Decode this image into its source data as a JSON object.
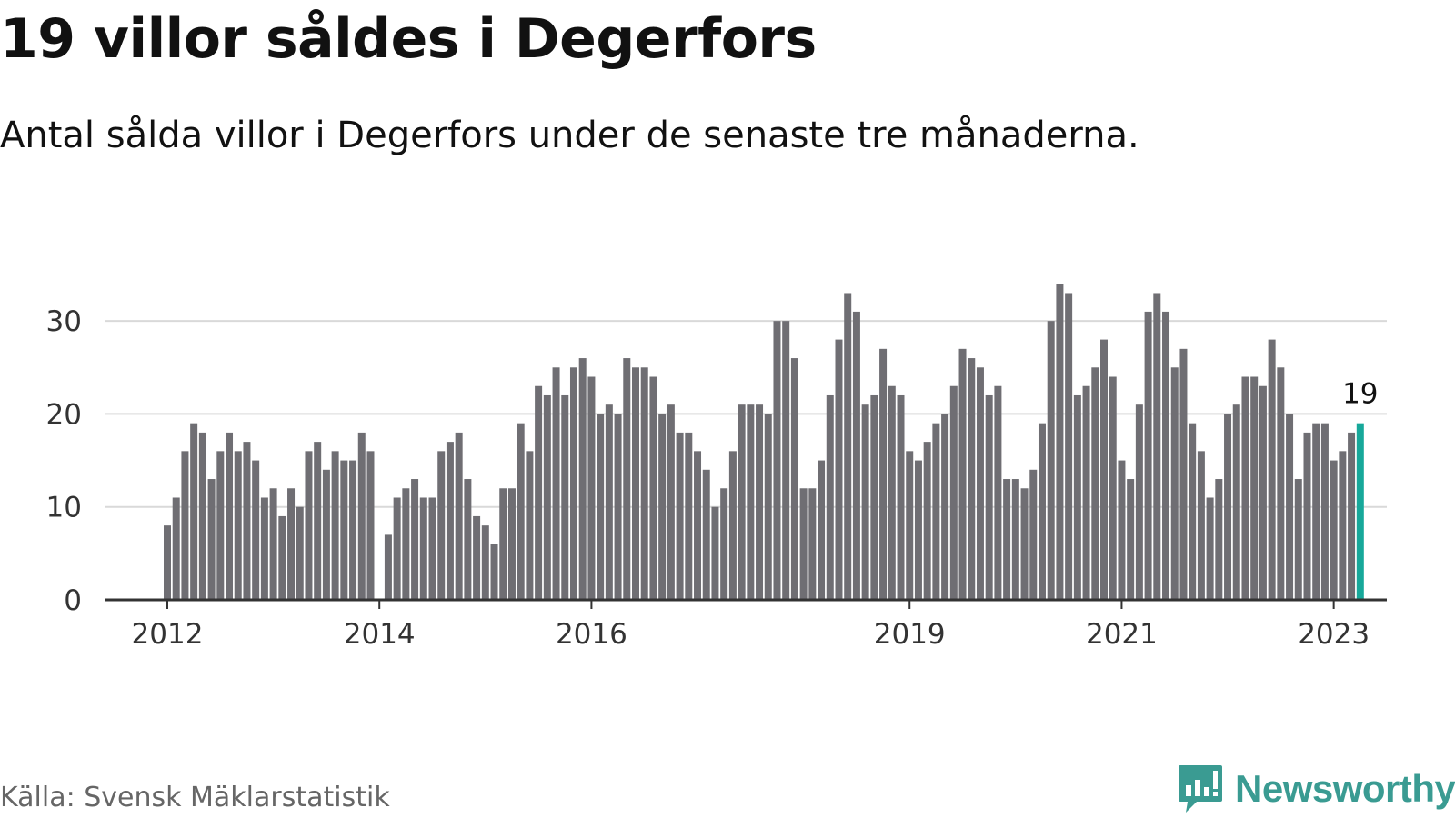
{
  "title": "19 villor såldes i Degerfors",
  "subtitle": "Antal sålda villor i Degerfors under de senaste tre månaderna.",
  "source": "Källa: Svensk Mäklarstatistik",
  "brand": {
    "name": "Newsworthy",
    "icon": "newsworthy-logo-icon",
    "color": "#3a9b92"
  },
  "chart_data": {
    "type": "bar",
    "x_start": "2012-01",
    "x_step": "month",
    "values": [
      8,
      11,
      16,
      19,
      18,
      13,
      16,
      18,
      16,
      17,
      15,
      11,
      12,
      9,
      12,
      10,
      16,
      17,
      14,
      16,
      15,
      15,
      18,
      16,
      0,
      7,
      11,
      12,
      13,
      11,
      11,
      16,
      17,
      18,
      13,
      9,
      8,
      6,
      12,
      12,
      19,
      16,
      23,
      22,
      25,
      22,
      25,
      26,
      24,
      20,
      21,
      20,
      26,
      25,
      25,
      24,
      20,
      21,
      18,
      18,
      16,
      14,
      10,
      12,
      16,
      21,
      21,
      21,
      20,
      30,
      30,
      26,
      12,
      12,
      15,
      22,
      28,
      33,
      31,
      21,
      22,
      27,
      23,
      22,
      16,
      15,
      17,
      19,
      20,
      23,
      27,
      26,
      25,
      22,
      23,
      13,
      13,
      12,
      14,
      19,
      30,
      34,
      33,
      22,
      23,
      25,
      28,
      24,
      15,
      13,
      21,
      31,
      33,
      31,
      25,
      27,
      19,
      16,
      11,
      13,
      20,
      21,
      24,
      24,
      23,
      28,
      25,
      20,
      13,
      18,
      19,
      19,
      15,
      16,
      18,
      19
    ],
    "highlight_last": true,
    "highlight_label": "19",
    "bar_color": "#6f6e73",
    "highlight_color": "#17a89a",
    "ylim": [
      0,
      35
    ],
    "yticks": [
      0,
      10,
      20,
      30
    ],
    "xticks": [
      "2012",
      "2014",
      "2016",
      "2019",
      "2021",
      "2023"
    ],
    "xlabel": "",
    "ylabel": "",
    "grid": true
  }
}
